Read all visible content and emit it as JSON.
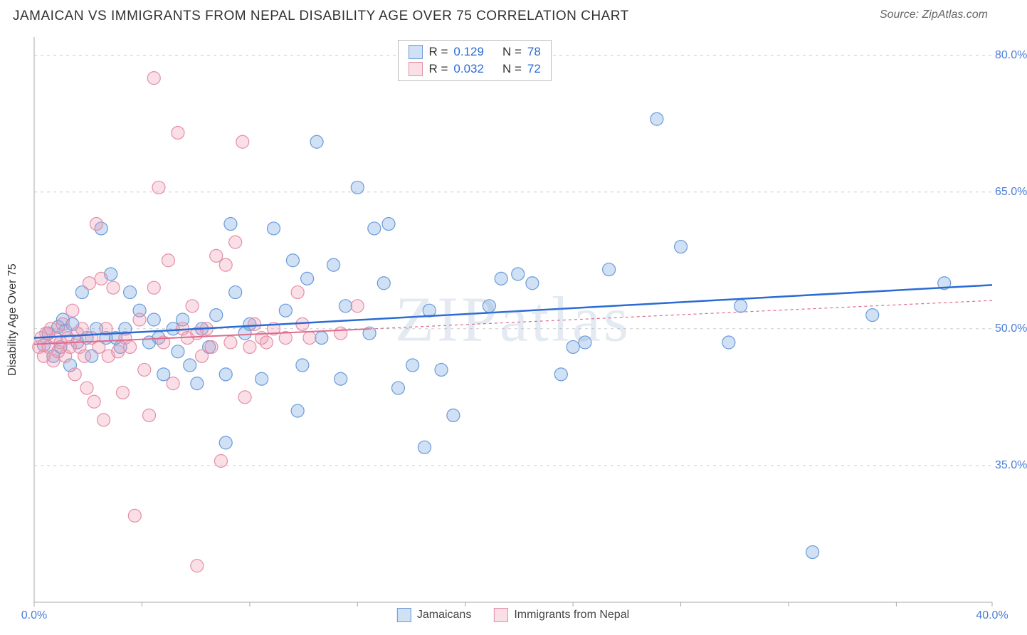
{
  "header": {
    "title": "JAMAICAN VS IMMIGRANTS FROM NEPAL DISABILITY AGE OVER 75 CORRELATION CHART",
    "source": "Source: ZipAtlas.com"
  },
  "chart": {
    "type": "scatter",
    "ylabel": "Disability Age Over 75",
    "watermark_text": "ZIPatlas",
    "background_color": "#ffffff",
    "grid_color": "#cccccc",
    "axis_color": "#aaaaaa",
    "xlim": [
      0,
      40
    ],
    "ylim": [
      20,
      82
    ],
    "xticks": [
      0,
      4.5,
      9,
      13.5,
      18,
      22.5,
      27,
      31.5,
      36,
      40
    ],
    "xtick_labels": {
      "0": "0.0%",
      "40": "40.0%"
    },
    "yticks": [
      35,
      50,
      65,
      80
    ],
    "ytick_labels": {
      "35": "35.0%",
      "50": "50.0%",
      "65": "65.0%",
      "80": "80.0%"
    },
    "marker_radius": 9,
    "label_fontsize": 16,
    "tick_color": "#4a7dd8",
    "series": [
      {
        "name": "Jamaicans",
        "color_fill": "rgba(120,165,225,0.35)",
        "color_stroke": "#6a9bd8",
        "trend_color": "#2a6bd4",
        "trend_width": 2.5,
        "trend_dash": "none",
        "trend_x_range": [
          0,
          40
        ],
        "trend": {
          "slope": 0.145,
          "intercept": 49.0
        },
        "R": "0.129",
        "N": "78",
        "points": [
          [
            0.4,
            48.2
          ],
          [
            0.6,
            49.5
          ],
          [
            0.8,
            47.0
          ],
          [
            1.0,
            50.2
          ],
          [
            1.1,
            48.0
          ],
          [
            1.2,
            51.0
          ],
          [
            1.3,
            49.8
          ],
          [
            1.5,
            46.0
          ],
          [
            1.6,
            50.5
          ],
          [
            1.8,
            48.5
          ],
          [
            2.0,
            54.0
          ],
          [
            2.2,
            49.0
          ],
          [
            2.4,
            47.0
          ],
          [
            2.6,
            50.0
          ],
          [
            2.8,
            61.0
          ],
          [
            3.0,
            49.0
          ],
          [
            3.2,
            56.0
          ],
          [
            3.4,
            49.0
          ],
          [
            3.6,
            48.0
          ],
          [
            3.8,
            50.0
          ],
          [
            4.0,
            54.0
          ],
          [
            4.4,
            52.0
          ],
          [
            4.8,
            48.5
          ],
          [
            5.0,
            51.0
          ],
          [
            5.2,
            49.0
          ],
          [
            5.4,
            45.0
          ],
          [
            5.8,
            50.0
          ],
          [
            6.0,
            47.5
          ],
          [
            6.2,
            51.0
          ],
          [
            6.5,
            46.0
          ],
          [
            6.8,
            44.0
          ],
          [
            7.0,
            50.0
          ],
          [
            7.3,
            48.0
          ],
          [
            7.6,
            51.5
          ],
          [
            8.0,
            37.5
          ],
          [
            8.0,
            45.0
          ],
          [
            8.2,
            61.5
          ],
          [
            8.4,
            54.0
          ],
          [
            8.8,
            49.5
          ],
          [
            9.0,
            50.5
          ],
          [
            9.5,
            44.5
          ],
          [
            10.0,
            61.0
          ],
          [
            10.5,
            52.0
          ],
          [
            10.8,
            57.5
          ],
          [
            11.0,
            41.0
          ],
          [
            11.2,
            46.0
          ],
          [
            11.4,
            55.5
          ],
          [
            11.8,
            70.5
          ],
          [
            12.0,
            49.0
          ],
          [
            12.5,
            57.0
          ],
          [
            12.8,
            44.5
          ],
          [
            13.0,
            52.5
          ],
          [
            13.5,
            65.5
          ],
          [
            14.0,
            49.5
          ],
          [
            14.2,
            61.0
          ],
          [
            14.6,
            55.0
          ],
          [
            14.8,
            61.5
          ],
          [
            15.2,
            43.5
          ],
          [
            15.8,
            46.0
          ],
          [
            16.3,
            37.0
          ],
          [
            16.5,
            52.0
          ],
          [
            17.0,
            45.5
          ],
          [
            17.5,
            40.5
          ],
          [
            19.0,
            52.5
          ],
          [
            19.5,
            55.5
          ],
          [
            20.2,
            56.0
          ],
          [
            20.8,
            55.0
          ],
          [
            22.0,
            45.0
          ],
          [
            22.5,
            48.0
          ],
          [
            23.0,
            48.5
          ],
          [
            24.0,
            56.5
          ],
          [
            26.0,
            73.0
          ],
          [
            27.0,
            59.0
          ],
          [
            29.0,
            48.5
          ],
          [
            29.5,
            52.5
          ],
          [
            32.5,
            25.5
          ],
          [
            35.0,
            51.5
          ],
          [
            38.0,
            55.0
          ]
        ]
      },
      {
        "name": "Immigrants from Nepal",
        "color_fill": "rgba(240,150,175,0.30)",
        "color_stroke": "#e38fa8",
        "trend_color": "#e06a8c",
        "trend_width": 2,
        "trend_dash": "4,4",
        "trend_dash_after": 14,
        "trend_x_range": [
          0,
          40
        ],
        "trend": {
          "slope": 0.12,
          "intercept": 48.3
        },
        "R": "0.032",
        "N": "72",
        "points": [
          [
            0.2,
            48.0
          ],
          [
            0.3,
            49.0
          ],
          [
            0.4,
            47.0
          ],
          [
            0.5,
            49.5
          ],
          [
            0.6,
            48.0
          ],
          [
            0.7,
            50.0
          ],
          [
            0.8,
            46.5
          ],
          [
            0.9,
            49.0
          ],
          [
            1.0,
            47.5
          ],
          [
            1.1,
            48.5
          ],
          [
            1.2,
            50.5
          ],
          [
            1.3,
            47.0
          ],
          [
            1.4,
            49.0
          ],
          [
            1.5,
            48.0
          ],
          [
            1.6,
            52.0
          ],
          [
            1.7,
            45.0
          ],
          [
            1.8,
            49.5
          ],
          [
            1.9,
            48.0
          ],
          [
            2.0,
            50.0
          ],
          [
            2.1,
            47.0
          ],
          [
            2.2,
            43.5
          ],
          [
            2.3,
            55.0
          ],
          [
            2.4,
            49.0
          ],
          [
            2.5,
            42.0
          ],
          [
            2.6,
            61.5
          ],
          [
            2.7,
            48.0
          ],
          [
            2.8,
            55.5
          ],
          [
            2.9,
            40.0
          ],
          [
            3.0,
            50.0
          ],
          [
            3.1,
            47.0
          ],
          [
            3.3,
            54.5
          ],
          [
            3.5,
            47.5
          ],
          [
            3.7,
            43.0
          ],
          [
            3.8,
            49.0
          ],
          [
            4.0,
            48.0
          ],
          [
            4.2,
            29.5
          ],
          [
            4.4,
            51.0
          ],
          [
            4.6,
            45.5
          ],
          [
            4.8,
            40.5
          ],
          [
            5.0,
            54.5
          ],
          [
            5.0,
            77.5
          ],
          [
            5.2,
            65.5
          ],
          [
            5.4,
            48.5
          ],
          [
            5.6,
            57.5
          ],
          [
            5.8,
            44.0
          ],
          [
            6.0,
            71.5
          ],
          [
            6.2,
            50.0
          ],
          [
            6.4,
            49.0
          ],
          [
            6.6,
            52.5
          ],
          [
            6.8,
            49.5
          ],
          [
            6.8,
            24.0
          ],
          [
            7.0,
            47.0
          ],
          [
            7.2,
            50.0
          ],
          [
            7.4,
            48.0
          ],
          [
            7.6,
            58.0
          ],
          [
            7.8,
            35.5
          ],
          [
            8.0,
            57.0
          ],
          [
            8.2,
            48.5
          ],
          [
            8.4,
            59.5
          ],
          [
            8.7,
            70.5
          ],
          [
            8.8,
            42.5
          ],
          [
            9.0,
            48.0
          ],
          [
            9.2,
            50.5
          ],
          [
            9.5,
            49.0
          ],
          [
            9.7,
            48.5
          ],
          [
            10.0,
            50.0
          ],
          [
            10.5,
            49.0
          ],
          [
            11.0,
            54.0
          ],
          [
            11.2,
            50.5
          ],
          [
            11.5,
            49.0
          ],
          [
            12.8,
            49.5
          ],
          [
            13.5,
            52.5
          ]
        ]
      }
    ],
    "bottom_legend": [
      {
        "label": "Jamaicans",
        "fill": "rgba(120,165,225,0.35)",
        "stroke": "#6a9bd8"
      },
      {
        "label": "Immigrants from Nepal",
        "fill": "rgba(240,150,175,0.30)",
        "stroke": "#e38fa8"
      }
    ]
  }
}
